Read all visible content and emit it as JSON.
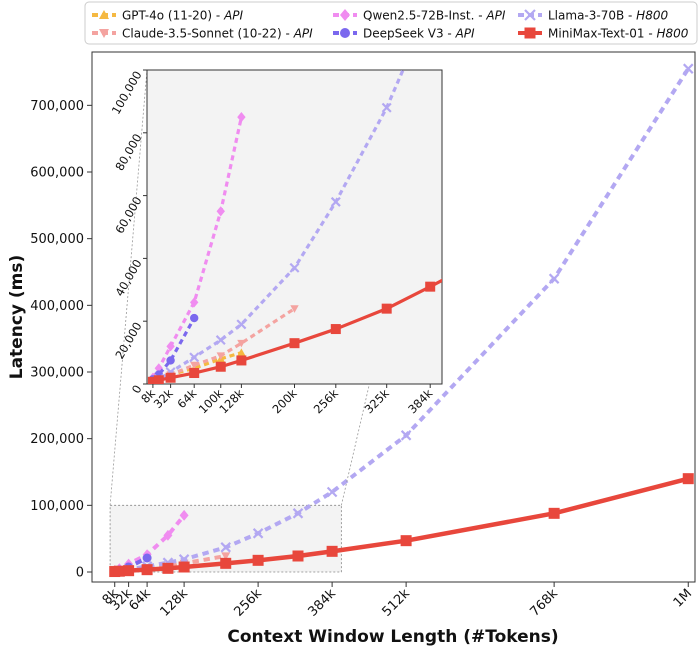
{
  "chart_data": {
    "type": "line",
    "xlabel": "Context Window Length (#Tokens)",
    "ylabel": "Latency (ms)",
    "xlim": [
      0,
      1000000
    ],
    "ylim": [
      -15000,
      780000
    ],
    "x_ticks": [
      {
        "v": 8000,
        "label": "8k"
      },
      {
        "v": 32000,
        "label": "32k"
      },
      {
        "v": 64000,
        "label": "64k"
      },
      {
        "v": 128000,
        "label": "128k"
      },
      {
        "v": 256000,
        "label": "256k"
      },
      {
        "v": 384000,
        "label": "384k"
      },
      {
        "v": 512000,
        "label": "512k"
      },
      {
        "v": 768000,
        "label": "768k"
      },
      {
        "v": 1000000,
        "label": "1M"
      }
    ],
    "y_ticks": [
      {
        "v": 0,
        "label": "0"
      },
      {
        "v": 100000,
        "label": "100,000"
      },
      {
        "v": 200000,
        "label": "200,000"
      },
      {
        "v": 300000,
        "label": "300,000"
      },
      {
        "v": 400000,
        "label": "400,000"
      },
      {
        "v": 500000,
        "label": "500,000"
      },
      {
        "v": 600000,
        "label": "600,000"
      },
      {
        "v": 700000,
        "label": "700,000"
      }
    ],
    "legend": {
      "position": "top",
      "entries": [
        {
          "name": "GPT-4o (11-20)",
          "tag": "API"
        },
        {
          "name": "Qwen2.5-72B-Inst.",
          "tag": "API"
        },
        {
          "name": "Llama-3-70B",
          "tag": "H800"
        },
        {
          "name": "Claude-3.5-Sonnet (10-22)",
          "tag": "API"
        },
        {
          "name": "DeepSeek V3",
          "tag": "API"
        },
        {
          "name": "MiniMax-Text-01",
          "tag": "H800"
        }
      ]
    },
    "series": [
      {
        "name": "GPT-4o (11-20) - API",
        "color": "#f5b942",
        "marker": "triangle-up",
        "dashed": true,
        "x": [
          8000,
          16000,
          32000,
          64000,
          100000,
          128000
        ],
        "y": [
          1000,
          2000,
          3000,
          5000,
          8000,
          10000
        ]
      },
      {
        "name": "Claude-3.5-Sonnet (10-22) - API",
        "color": "#f4a3a0",
        "marker": "triangle-down",
        "dashed": true,
        "x": [
          8000,
          16000,
          32000,
          64000,
          100000,
          128000,
          200000
        ],
        "y": [
          1000,
          2000,
          3000,
          6000,
          9000,
          13000,
          24000
        ]
      },
      {
        "name": "Qwen2.5-72B-Inst. - API",
        "color": "#f08cf0",
        "marker": "diamond",
        "dashed": true,
        "x": [
          8000,
          16000,
          32000,
          64000,
          100000,
          128000
        ],
        "y": [
          2000,
          5000,
          12000,
          26000,
          55000,
          85000
        ]
      },
      {
        "name": "DeepSeek V3 - API",
        "color": "#7b68ee",
        "marker": "circle",
        "dashed": true,
        "x": [
          8000,
          16000,
          32000,
          64000
        ],
        "y": [
          1500,
          3000,
          7500,
          21000
        ]
      },
      {
        "name": "Llama-3-70B - H800",
        "color": "#b3a8f2",
        "marker": "x",
        "dashed": true,
        "x": [
          8000,
          16000,
          32000,
          64000,
          100000,
          128000,
          200000,
          256000,
          325000,
          384000,
          512000,
          768000,
          1000000
        ],
        "y": [
          800,
          1600,
          3800,
          8500,
          14000,
          19000,
          37000,
          58000,
          88000,
          120000,
          205000,
          440000,
          755000
        ]
      },
      {
        "name": "MiniMax-Text-01 - H800",
        "color": "#e8473c",
        "marker": "square",
        "dashed": false,
        "x": [
          8000,
          16000,
          32000,
          64000,
          100000,
          128000,
          200000,
          256000,
          325000,
          384000,
          512000,
          768000,
          1000000
        ],
        "y": [
          700,
          1200,
          2000,
          3500,
          5500,
          7500,
          13000,
          17500,
          24000,
          31000,
          47000,
          88000,
          140000
        ]
      }
    ],
    "inset": {
      "xlim": [
        0,
        400000
      ],
      "ylim": [
        0,
        100000
      ],
      "x_ticks": [
        {
          "v": 8000,
          "label": "8k"
        },
        {
          "v": 32000,
          "label": "32k"
        },
        {
          "v": 64000,
          "label": "64k"
        },
        {
          "v": 100000,
          "label": "100k"
        },
        {
          "v": 128000,
          "label": "128k"
        },
        {
          "v": 200000,
          "label": "200k"
        },
        {
          "v": 256000,
          "label": "256k"
        },
        {
          "v": 325000,
          "label": "325k"
        },
        {
          "v": 384000,
          "label": "384k"
        }
      ],
      "y_ticks": [
        {
          "v": 0,
          "label": "0"
        },
        {
          "v": 20000,
          "label": "20,000"
        },
        {
          "v": 40000,
          "label": "40,000"
        },
        {
          "v": 60000,
          "label": "60,000"
        },
        {
          "v": 80000,
          "label": "80,000"
        },
        {
          "v": 100000,
          "label": "100,000"
        }
      ]
    }
  }
}
